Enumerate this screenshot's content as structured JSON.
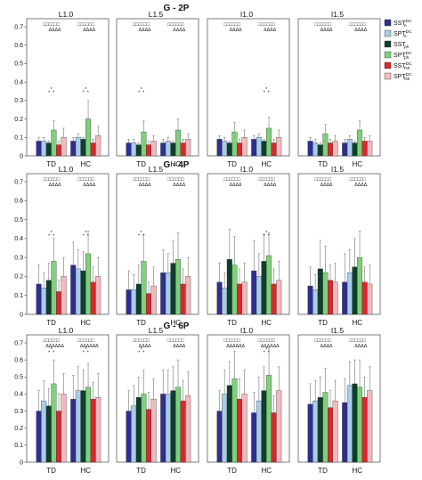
{
  "legend": [
    {
      "base": "SST",
      "sub": "e",
      "sup": "DC",
      "color": "#2e2e8f"
    },
    {
      "base": "SPT",
      "sub": "e",
      "sup": "DC",
      "color": "#a8cde8"
    },
    {
      "base": "SST",
      "sub": "ph",
      "sup": "",
      "color": "#0e3f2a"
    },
    {
      "base": "SPT",
      "sub": "ph",
      "sup": "DC",
      "color": "#7fd07a"
    },
    {
      "base": "SST",
      "sub": "fsh",
      "sup": "DC",
      "color": "#d8272d"
    },
    {
      "base": "SPT",
      "sub": "fsh",
      "sup": "DC",
      "color": "#f3b9bf"
    }
  ],
  "chart_data": [
    {
      "type": "bar",
      "title": "G - 2P",
      "panels": [
        {
          "title": "L1.0",
          "top_annotations": "□□□□□□ ΔΔΔΔ",
          "categories": [
            "TD",
            "HC"
          ],
          "series_values": [
            [
              0.08,
              0.08
            ],
            [
              0.08,
              0.1
            ],
            [
              0.07,
              0.09
            ],
            [
              0.14,
              0.2
            ],
            [
              0.06,
              0.07
            ],
            [
              0.1,
              0.11
            ]
          ],
          "errors": [
            [
              0.02,
              0.02
            ],
            [
              0.02,
              0.02
            ],
            [
              0.01,
              0.01
            ],
            [
              0.05,
              0.1
            ],
            [
              0.02,
              0.02
            ],
            [
              0.05,
              0.05
            ]
          ],
          "markers": [
            {
              "category": "HC",
              "label": "*",
              "y": 0.35
            },
            {
              "category": "TD",
              "label": "*",
              "y": 0.35
            }
          ]
        },
        {
          "title": "L1.5",
          "top_annotations": "□□□□□□ ΔΔΔΔ",
          "categories": [
            "TD",
            "HC"
          ],
          "series_values": [
            [
              0.07,
              0.07
            ],
            [
              0.07,
              0.08
            ],
            [
              0.06,
              0.07
            ],
            [
              0.13,
              0.14
            ],
            [
              0.06,
              0.07
            ],
            [
              0.08,
              0.09
            ]
          ],
          "errors": [
            [
              0.02,
              0.02
            ],
            [
              0.02,
              0.02
            ],
            [
              0.01,
              0.01
            ],
            [
              0.06,
              0.06
            ],
            [
              0.02,
              0.02
            ],
            [
              0.03,
              0.03
            ]
          ],
          "markers": [
            {
              "category": "TD",
              "label": "*",
              "y": 0.35
            }
          ]
        },
        {
          "title": "I1.0",
          "top_annotations": "□□□□□□ ΔΔΔΔ",
          "categories": [
            "TD",
            "HC"
          ],
          "series_values": [
            [
              0.09,
              0.09
            ],
            [
              0.08,
              0.1
            ],
            [
              0.07,
              0.08
            ],
            [
              0.13,
              0.15
            ],
            [
              0.07,
              0.07
            ],
            [
              0.1,
              0.1
            ]
          ],
          "errors": [
            [
              0.02,
              0.02
            ],
            [
              0.02,
              0.02
            ],
            [
              0.01,
              0.01
            ],
            [
              0.05,
              0.06
            ],
            [
              0.02,
              0.02
            ],
            [
              0.04,
              0.04
            ]
          ],
          "markers": [
            {
              "category": "HC",
              "label": "*",
              "y": 0.35
            }
          ]
        },
        {
          "title": "I1.5",
          "top_annotations": "□□□□□□ ΔΔΔΔ",
          "categories": [
            "TD",
            "HC"
          ],
          "series_values": [
            [
              0.08,
              0.07
            ],
            [
              0.07,
              0.09
            ],
            [
              0.06,
              0.07
            ],
            [
              0.12,
              0.14
            ],
            [
              0.07,
              0.08
            ],
            [
              0.08,
              0.08
            ]
          ],
          "errors": [
            [
              0.02,
              0.02
            ],
            [
              0.02,
              0.02
            ],
            [
              0.01,
              0.01
            ],
            [
              0.05,
              0.05
            ],
            [
              0.02,
              0.02
            ],
            [
              0.03,
              0.03
            ]
          ],
          "markers": []
        }
      ]
    },
    {
      "type": "bar",
      "title": "G - 4P",
      "panels": [
        {
          "title": "L1.0",
          "top_annotations": "□□□□□□ ΔΔΔΔ",
          "categories": [
            "TD",
            "HC"
          ],
          "series_values": [
            [
              0.16,
              0.26
            ],
            [
              0.14,
              0.24
            ],
            [
              0.18,
              0.23
            ],
            [
              0.28,
              0.32
            ],
            [
              0.12,
              0.17
            ],
            [
              0.2,
              0.2
            ]
          ],
          "errors": [
            [
              0.1,
              0.12
            ],
            [
              0.08,
              0.1
            ],
            [
              0.09,
              0.1
            ],
            [
              0.12,
              0.12
            ],
            [
              0.06,
              0.08
            ],
            [
              0.1,
              0.1
            ]
          ],
          "markers": [
            {
              "category": "TD",
              "label": "*",
              "y": 0.42
            },
            {
              "category": "HC",
              "label": "*",
              "y": 0.42
            }
          ]
        },
        {
          "title": "L1.5",
          "top_annotations": "□□□□□□ ΔΔΔΔ",
          "categories": [
            "TD",
            "HC"
          ],
          "series_values": [
            [
              0.13,
              0.22
            ],
            [
              0.13,
              0.22
            ],
            [
              0.16,
              0.27
            ],
            [
              0.28,
              0.29
            ],
            [
              0.11,
              0.16
            ],
            [
              0.15,
              0.2
            ]
          ],
          "errors": [
            [
              0.1,
              0.12
            ],
            [
              0.08,
              0.1
            ],
            [
              0.1,
              0.12
            ],
            [
              0.14,
              0.14
            ],
            [
              0.06,
              0.08
            ],
            [
              0.1,
              0.1
            ]
          ],
          "markers": [
            {
              "category": "TD",
              "label": "*",
              "y": 0.42
            }
          ]
        },
        {
          "title": "I1.0",
          "top_annotations": "□□□□□□ ΔΔΔΔ",
          "categories": [
            "TD",
            "HC"
          ],
          "series_values": [
            [
              0.17,
              0.23
            ],
            [
              0.14,
              0.2
            ],
            [
              0.29,
              0.28
            ],
            [
              0.26,
              0.31
            ],
            [
              0.16,
              0.16
            ],
            [
              0.17,
              0.18
            ]
          ],
          "errors": [
            [
              0.1,
              0.16
            ],
            [
              0.08,
              0.12
            ],
            [
              0.16,
              0.14
            ],
            [
              0.15,
              0.12
            ],
            [
              0.08,
              0.08
            ],
            [
              0.1,
              0.1
            ]
          ],
          "markers": [
            {
              "category": "HC",
              "label": "*",
              "y": 0.42
            }
          ]
        },
        {
          "title": "I1.5",
          "top_annotations": "□□□□□□ ΔΔΔΔ",
          "categories": [
            "TD",
            "HC"
          ],
          "series_values": [
            [
              0.15,
              0.17
            ],
            [
              0.13,
              0.22
            ],
            [
              0.24,
              0.25
            ],
            [
              0.22,
              0.3
            ],
            [
              0.18,
              0.17
            ],
            [
              0.17,
              0.16
            ]
          ],
          "errors": [
            [
              0.1,
              0.15
            ],
            [
              0.08,
              0.12
            ],
            [
              0.15,
              0.15
            ],
            [
              0.14,
              0.14
            ],
            [
              0.08,
              0.08
            ],
            [
              0.1,
              0.1
            ]
          ],
          "markers": []
        }
      ]
    },
    {
      "type": "bar",
      "title": "G - 6P",
      "panels": [
        {
          "title": "L1.0",
          "top_annotations": "□□□□□□ ΔΔΔΔΔΔ",
          "categories": [
            "TD",
            "HC"
          ],
          "series_values": [
            [
              0.3,
              0.37
            ],
            [
              0.36,
              0.42
            ],
            [
              0.33,
              0.42
            ],
            [
              0.46,
              0.44
            ],
            [
              0.3,
              0.37
            ],
            [
              0.4,
              0.38
            ]
          ],
          "errors": [
            [
              0.12,
              0.14
            ],
            [
              0.12,
              0.14
            ],
            [
              0.1,
              0.12
            ],
            [
              0.14,
              0.14
            ],
            [
              0.1,
              0.1
            ],
            [
              0.12,
              0.14
            ]
          ],
          "markers": [
            {
              "category": "TD",
              "label": "*",
              "y": 0.65
            },
            {
              "category": "HC",
              "label": "*",
              "y": 0.65
            }
          ]
        },
        {
          "title": "L1.5",
          "top_annotations": "□□□□□□ ΔΔΔΔ",
          "categories": [
            "TD",
            "HC"
          ],
          "series_values": [
            [
              0.3,
              0.4
            ],
            [
              0.33,
              0.4
            ],
            [
              0.38,
              0.42
            ],
            [
              0.4,
              0.44
            ],
            [
              0.31,
              0.36
            ],
            [
              0.37,
              0.39
            ]
          ],
          "errors": [
            [
              0.12,
              0.14
            ],
            [
              0.12,
              0.14
            ],
            [
              0.12,
              0.14
            ],
            [
              0.14,
              0.16
            ],
            [
              0.1,
              0.12
            ],
            [
              0.12,
              0.14
            ]
          ],
          "markers": [
            {
              "category": "TD",
              "label": "*",
              "y": 0.65
            }
          ]
        },
        {
          "title": "I1.0",
          "top_annotations": "□□□□□□ ΔΔΔΔΔΔ",
          "categories": [
            "TD",
            "HC"
          ],
          "series_values": [
            [
              0.3,
              0.29
            ],
            [
              0.4,
              0.36
            ],
            [
              0.45,
              0.42
            ],
            [
              0.49,
              0.51
            ],
            [
              0.37,
              0.29
            ],
            [
              0.4,
              0.42
            ]
          ],
          "errors": [
            [
              0.12,
              0.12
            ],
            [
              0.14,
              0.14
            ],
            [
              0.14,
              0.14
            ],
            [
              0.16,
              0.16
            ],
            [
              0.12,
              0.1
            ],
            [
              0.14,
              0.14
            ]
          ],
          "markers": [
            {
              "category": "HC",
              "label": "*",
              "y": 0.65
            }
          ]
        },
        {
          "title": "I1.5",
          "top_annotations": "□□□□□□ ΔΔΔΔ",
          "categories": [
            "TD",
            "HC"
          ],
          "series_values": [
            [
              0.34,
              0.35
            ],
            [
              0.36,
              0.45
            ],
            [
              0.38,
              0.46
            ],
            [
              0.41,
              0.44
            ],
            [
              0.32,
              0.38
            ],
            [
              0.36,
              0.42
            ]
          ],
          "errors": [
            [
              0.12,
              0.14
            ],
            [
              0.12,
              0.14
            ],
            [
              0.12,
              0.14
            ],
            [
              0.14,
              0.16
            ],
            [
              0.1,
              0.12
            ],
            [
              0.12,
              0.14
            ]
          ],
          "markers": []
        }
      ]
    }
  ]
}
